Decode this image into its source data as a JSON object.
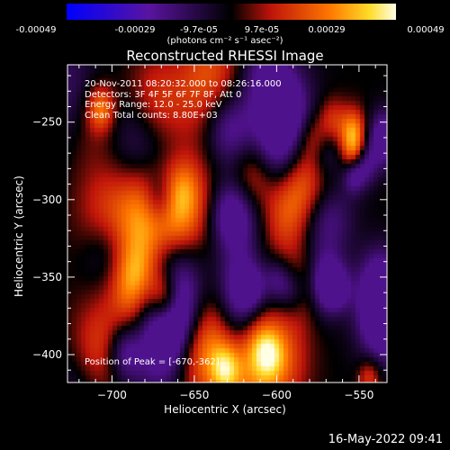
{
  "colorbar": {
    "tick_labels": [
      "-0.00049",
      "-0.00029",
      "-9.7e-05",
      "9.7e-05",
      "0.00029",
      "0.00049"
    ],
    "range": [
      -0.00049,
      0.00049
    ],
    "units": "(photons cm⁻² s⁻¹ asec⁻²)"
  },
  "chart_data": {
    "type": "heatmap",
    "title": "Reconstructed RHESSI Image",
    "xlabel": "Heliocentric X (arcsec)",
    "ylabel": "Heliocentric Y (arcsec)",
    "xlim": [
      -727,
      -533
    ],
    "ylim": [
      -418,
      -213
    ],
    "xticks": [
      -700,
      -650,
      -600,
      -550
    ],
    "yticks": [
      -250,
      -300,
      -350,
      -400
    ],
    "peak": [
      -670,
      -362
    ],
    "colors": {
      "low": "#3a0a7a",
      "mid": "#c41a0a",
      "high": "#ffffc8"
    },
    "annotations": [
      "20-Nov-2011 08:20:32.000 to 08:26:16.000",
      "Detectors: 3F 4F 5F 6F 7F 8F, Att 0",
      "Energy Range: 12.0 - 25.0 keV",
      "Clean     Total counts: 8.80E+03"
    ],
    "peak_label": "Position of Peak = [-670,-362]"
  },
  "footer": {
    "timestamp": "16-May-2022 09:41"
  }
}
